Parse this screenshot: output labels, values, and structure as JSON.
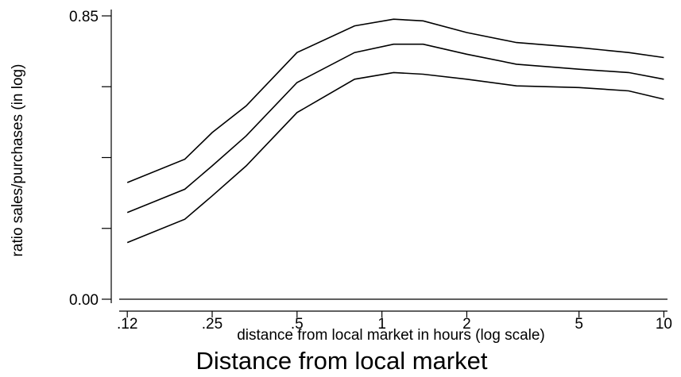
{
  "chart_data": {
    "type": "line",
    "title": "Distance from local market",
    "xlabel": "distance from local market in hours (log scale)",
    "ylabel": "ratio sales/purchases (in log)",
    "x_scale": "log",
    "xlim": [
      0.117,
      10.3
    ],
    "ylim": [
      0.0,
      0.85
    ],
    "x_ticks": [
      {
        "value": 0.125,
        "label": ".12"
      },
      {
        "value": 0.25,
        "label": ".25"
      },
      {
        "value": 0.5,
        "label": ".5"
      },
      {
        "value": 1,
        "label": "1"
      },
      {
        "value": 2,
        "label": "2"
      },
      {
        "value": 5,
        "label": "5"
      },
      {
        "value": 10,
        "label": "10"
      }
    ],
    "y_ticks": [
      {
        "value": 0.0,
        "label": "0.00"
      },
      {
        "value": 0.2125,
        "label": ""
      },
      {
        "value": 0.425,
        "label": ""
      },
      {
        "value": 0.6375,
        "label": ""
      },
      {
        "value": 0.85,
        "label": "0.85"
      }
    ],
    "x": [
      0.125,
      0.2,
      0.25,
      0.33,
      0.5,
      0.8,
      1.1,
      1.4,
      2.0,
      3.0,
      5.0,
      7.5,
      10
    ],
    "series": [
      {
        "values": [
          0.35,
          0.42,
          0.5,
          0.58,
          0.74,
          0.82,
          0.84,
          0.835,
          0.8,
          0.77,
          0.755,
          0.74,
          0.725
        ]
      },
      {
        "values": [
          0.26,
          0.33,
          0.4,
          0.49,
          0.65,
          0.74,
          0.765,
          0.765,
          0.735,
          0.705,
          0.69,
          0.68,
          0.66
        ]
      },
      {
        "values": [
          0.17,
          0.24,
          0.31,
          0.4,
          0.56,
          0.66,
          0.68,
          0.675,
          0.66,
          0.64,
          0.635,
          0.625,
          0.6
        ]
      }
    ],
    "grid": false,
    "legend": "none",
    "colors": {
      "line": "#000000",
      "background": "#ffffff"
    }
  }
}
